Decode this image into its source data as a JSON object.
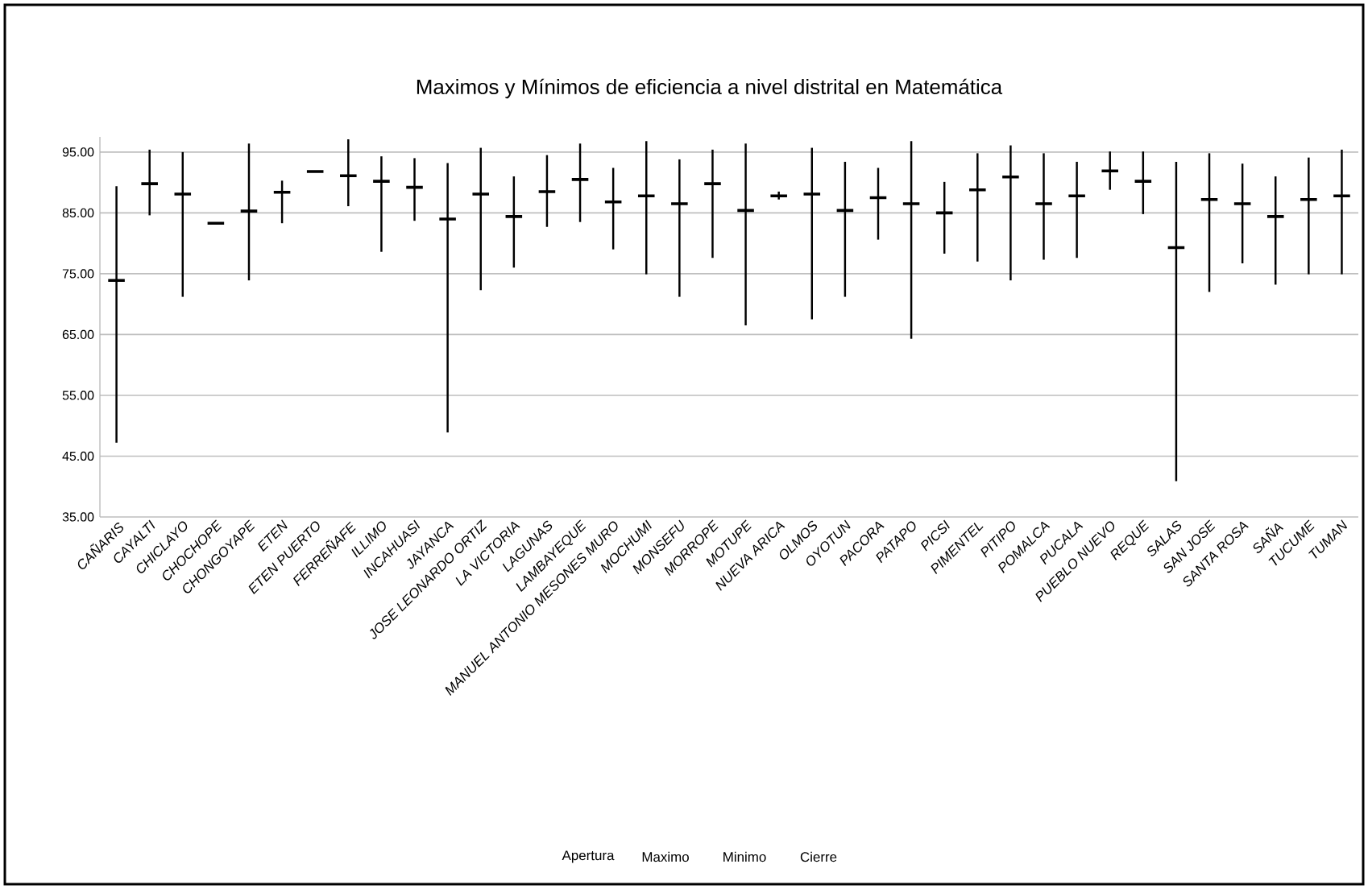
{
  "chart_data": {
    "type": "candlestick",
    "title": "Maximos y Mínimos de eficiencia a nivel distrital en Matemática",
    "categories": [
      "CAÑARIS",
      "CAYALTI",
      "CHICLAYO",
      "CHOCHOPE",
      "CHONGOYAPE",
      "ETEN",
      "ETEN PUERTO",
      "FERREÑAFE",
      "ILLIMO",
      "INCAHUASI",
      "JAYANCA",
      "JOSE LEONARDO ORTIZ",
      "LA VICTORIA",
      "LAGUNAS",
      "LAMBAYEQUE",
      "MANUEL ANTONIO MESONES MURO",
      "MOCHUMI",
      "MONSEFU",
      "MORROPE",
      "MOTUPE",
      "NUEVA ARICA",
      "OLMOS",
      "OYOTUN",
      "PACORA",
      "PATAPO",
      "PICSI",
      "PIMENTEL",
      "PITIPO",
      "POMALCA",
      "PUCALA",
      "PUEBLO NUEVO",
      "REQUE",
      "SALAS",
      "SAN JOSE",
      "SANTA ROSA",
      "SAÑA",
      "TUCUME",
      "TUMAN"
    ],
    "ohlc": [
      [
        73.9,
        89.4,
        47.2,
        73.9
      ],
      [
        89.8,
        95.4,
        84.6,
        89.8
      ],
      [
        88.1,
        95.0,
        71.2,
        88.1
      ],
      [
        83.3,
        83.3,
        83.3,
        83.3
      ],
      [
        85.3,
        96.4,
        73.9,
        85.3
      ],
      [
        88.4,
        90.3,
        83.3,
        88.4
      ],
      [
        91.8,
        91.8,
        91.8,
        91.8
      ],
      [
        91.1,
        97.1,
        86.1,
        91.1
      ],
      [
        90.2,
        94.3,
        78.6,
        90.2
      ],
      [
        89.2,
        94.0,
        83.7,
        89.2
      ],
      [
        84.0,
        93.2,
        48.9,
        84.0
      ],
      [
        88.1,
        95.7,
        72.3,
        88.1
      ],
      [
        84.4,
        91.0,
        76.0,
        84.4
      ],
      [
        88.5,
        94.5,
        82.7,
        88.5
      ],
      [
        90.5,
        96.4,
        83.5,
        90.5
      ],
      [
        86.8,
        92.4,
        79.0,
        86.8
      ],
      [
        87.8,
        96.8,
        74.9,
        87.8
      ],
      [
        86.5,
        93.8,
        71.2,
        86.5
      ],
      [
        89.8,
        95.4,
        77.6,
        89.8
      ],
      [
        85.4,
        96.4,
        66.5,
        85.4
      ],
      [
        87.8,
        88.5,
        87.2,
        87.8
      ],
      [
        88.1,
        95.7,
        67.5,
        88.1
      ],
      [
        85.4,
        93.4,
        71.2,
        85.4
      ],
      [
        87.5,
        92.4,
        80.6,
        87.5
      ],
      [
        86.5,
        96.8,
        64.3,
        86.5
      ],
      [
        85.0,
        90.1,
        78.3,
        85.0
      ],
      [
        88.8,
        94.8,
        77.0,
        88.8
      ],
      [
        90.9,
        96.1,
        73.9,
        90.9
      ],
      [
        86.5,
        94.8,
        77.3,
        86.5
      ],
      [
        87.8,
        93.4,
        77.6,
        87.8
      ],
      [
        91.9,
        95.1,
        88.8,
        91.9
      ],
      [
        90.2,
        95.1,
        84.8,
        90.2
      ],
      [
        79.3,
        93.4,
        40.9,
        79.3
      ],
      [
        87.2,
        94.8,
        72.0,
        87.2
      ],
      [
        86.5,
        93.1,
        76.7,
        86.5
      ],
      [
        84.4,
        91.0,
        73.2,
        84.4
      ],
      [
        87.2,
        94.1,
        74.9,
        87.2
      ],
      [
        87.8,
        95.4,
        74.9,
        87.8
      ]
    ],
    "color": "#000000",
    "ylim": [
      35,
      97.5
    ],
    "yticks": [
      {
        "value": 35,
        "label": "35.00"
      },
      {
        "value": 45,
        "label": "45.00"
      },
      {
        "value": 55,
        "label": "55.00"
      },
      {
        "value": 65,
        "label": "65.00"
      },
      {
        "value": 75,
        "label": "75.00"
      },
      {
        "value": 85,
        "label": "85.00"
      },
      {
        "value": 95,
        "label": "95.00"
      }
    ],
    "grid": "y",
    "annotations": [
      "Apertura",
      "Maximo",
      "Minimo",
      "Cierre"
    ]
  }
}
